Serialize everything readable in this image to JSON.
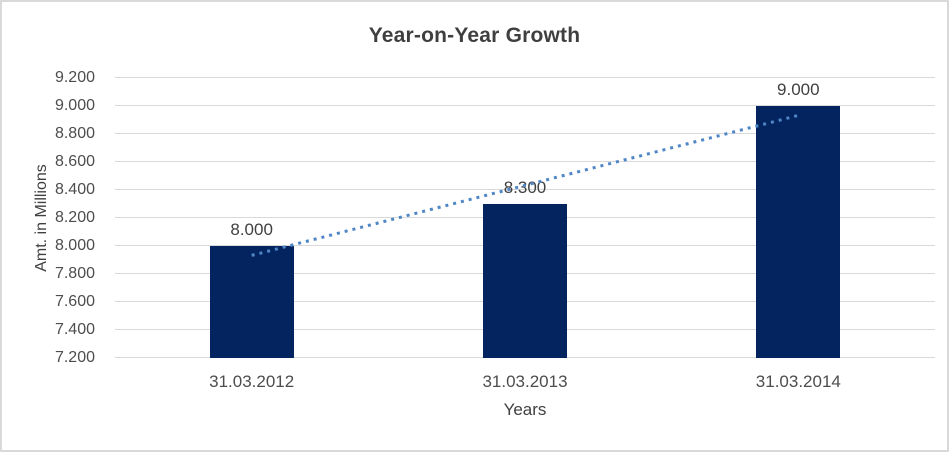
{
  "chart_data": {
    "type": "bar",
    "title": "Year-on-Year Growth",
    "xlabel": "Years",
    "ylabel": "Amt. in Millions",
    "categories": [
      "31.03.2012",
      "31.03.2013",
      "31.03.2014"
    ],
    "values": [
      8.0,
      8.3,
      9.0
    ],
    "value_labels": [
      "8.000",
      "8.300",
      "9.000"
    ],
    "ylim": [
      7.2,
      9.2
    ],
    "ytick_labels": [
      "7.200",
      "7.400",
      "7.600",
      "7.800",
      "8.000",
      "8.200",
      "8.400",
      "8.600",
      "8.800",
      "9.000",
      "9.200"
    ],
    "grid": true,
    "legend": "none",
    "trendline": {
      "type": "linear",
      "style": "dotted",
      "endpoint_values": [
        7.933,
        8.933
      ]
    },
    "colors": {
      "bar": "#03245f",
      "trendline": "#4f86c6",
      "gridline": "#d9d9d9",
      "title": "#3f3f3f",
      "axis_text": "#4d4d4d",
      "data_label": "#404040"
    }
  }
}
